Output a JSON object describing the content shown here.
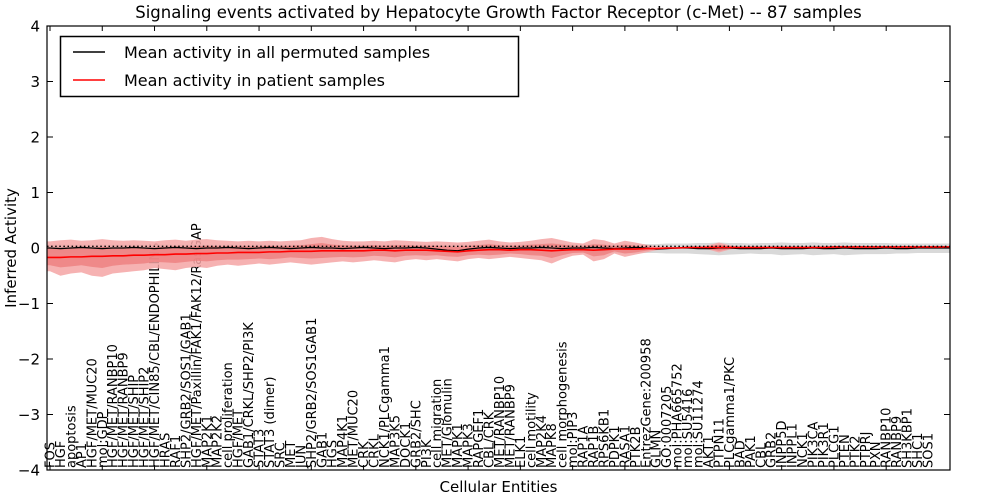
{
  "title": "Signaling events activated by Hepatocyte Growth Factor Receptor (c-Met) -- 87 samples",
  "legend": {
    "items": [
      {
        "label": "Mean activity in all permuted samples",
        "color": "#000000"
      },
      {
        "label": "Mean activity in patient samples",
        "color": "#ff0000"
      }
    ]
  },
  "axes": {
    "xlabel": "Cellular Entities",
    "ylabel": "Inferred Activity",
    "yticks": [
      4,
      3,
      2,
      1,
      0,
      -1,
      -2,
      -3,
      -4
    ],
    "ylim": [
      -4,
      4
    ]
  },
  "colors": {
    "patient_line": "#ff0000",
    "permuted_line": "#000000",
    "patient_band_outer": "#f4a4a4",
    "patient_band_inner": "#ee7e7e",
    "permuted_band": "#d9d9d9"
  },
  "chart_data": {
    "type": "line",
    "title": "Signaling events activated by Hepatocyte Growth Factor Receptor (c-Met) -- 87 samples",
    "xlabel": "Cellular Entities",
    "ylabel": "Inferred Activity",
    "ylim": [
      -4,
      4
    ],
    "grid": false,
    "legend_position": "upper left",
    "categories": [
      "FOS",
      "HGF",
      "apoptosis",
      "AP1",
      "HGF/MET/MUC20",
      "mol:GDP",
      "HGF/MET/RANBP10",
      "HGF/MET/RANBP9",
      "HGF/MET/SHIP",
      "HGF/MET/SHIP2",
      "HGF/MET/CIN85/CBL/ENDOPHILINS",
      "HRAS",
      "RAF1",
      "SHP2/GRB2/SOS1/GAB1",
      "HGF/MET/Paxillin/FAK1/FAK12/RasGAP",
      "MAP2K1",
      "MAP2K2",
      "cell proliferation",
      "HGF/MET",
      "GAB1/CRKL/SHP2/PI3K",
      "STAT3",
      "STAT3 (dimer)",
      "SRC",
      "MET",
      "JUN",
      "SHP2/GRB2/SOS1GAB1",
      "GAB1",
      "HGS",
      "MAP4K1",
      "MET/MUC20",
      "CRK",
      "CRKL",
      "NCK1/PLCgamma1",
      "MAP3K5",
      "DOCK1",
      "GRB2/SHC",
      "PI3K",
      "cell migration",
      "MET/Glomulin",
      "MAPK1",
      "MAPK3",
      "RAPGEF1",
      "CBL/CRK",
      "MET/RANBP10",
      "MET/RANBP9",
      "ELK1",
      "cell motility",
      "MAP2K4",
      "MAPK8",
      "cell morphogenesis",
      "mol:PIP3",
      "RAP1A",
      "RAP1B",
      "RPS6KB1",
      "PDPK1",
      "RASA1",
      "PTK2B",
      "EntrezGene:200958",
      "GLMN",
      "GO:0007205",
      "mol:PHA665752",
      "mol:SU5416",
      "mol:SU11274",
      "AKT1",
      "PTPN11",
      "PLCgamma1/PKC",
      "BAD",
      "PAK1",
      "CBL",
      "GRB2",
      "INPP5D",
      "INPPL1",
      "NCK1",
      "PIK3CA",
      "PIK3R1",
      "PLCG1",
      "PTEN",
      "PTK2",
      "PTPRJ",
      "PXN",
      "RANBP10",
      "RANBP9",
      "SH3KBP1",
      "SHC1",
      "SOS1"
    ],
    "series": [
      {
        "name": "Mean activity in all permuted samples",
        "color": "#000000",
        "style": "solid",
        "width": 1.3,
        "values": [
          0,
          -0.01,
          0,
          0.01,
          0,
          -0.01,
          0,
          0,
          0.01,
          0,
          -0.01,
          0,
          0.01,
          0,
          -0.01,
          0,
          0,
          0.01,
          0,
          -0.01,
          0,
          0.01,
          0,
          -0.01,
          0,
          0.01,
          0,
          0,
          -0.01,
          0,
          0.01,
          0,
          -0.01,
          0,
          0,
          0.01,
          0,
          -0.02,
          -0.04,
          -0.05,
          -0.02,
          0,
          0.01,
          0,
          -0.01,
          0,
          0,
          0.01,
          0,
          -0.01,
          0,
          0,
          0.01,
          0,
          -0.01,
          0,
          0.01,
          0,
          -0.02,
          -0.01,
          0,
          0,
          -0.01,
          -0.01,
          0,
          0,
          -0.01,
          -0.01,
          -0.01,
          0,
          -0.01,
          -0.01,
          -0.01,
          0,
          -0.01,
          -0.01,
          0,
          -0.01,
          -0.01,
          -0.01,
          0,
          -0.01,
          -0.01,
          0,
          0
        ]
      },
      {
        "name": "Mean activity in patient samples",
        "color": "#ff0000",
        "style": "solid",
        "width": 1.6,
        "values": [
          -0.17,
          -0.17,
          -0.16,
          -0.16,
          -0.15,
          -0.15,
          -0.14,
          -0.14,
          -0.13,
          -0.13,
          -0.12,
          -0.12,
          -0.11,
          -0.11,
          -0.1,
          -0.1,
          -0.09,
          -0.09,
          -0.08,
          -0.08,
          -0.08,
          -0.07,
          -0.07,
          -0.06,
          -0.06,
          -0.06,
          -0.05,
          -0.05,
          -0.05,
          -0.05,
          -0.05,
          -0.04,
          -0.04,
          -0.05,
          -0.04,
          -0.04,
          -0.04,
          -0.05,
          -0.06,
          -0.07,
          -0.05,
          -0.04,
          -0.03,
          -0.03,
          -0.04,
          -0.03,
          -0.03,
          -0.04,
          -0.05,
          -0.04,
          -0.03,
          -0.03,
          -0.04,
          -0.03,
          -0.02,
          -0.02,
          -0.02,
          -0.01,
          -0.01,
          0,
          0,
          0.01,
          0.01,
          0.01,
          0.01,
          0.01,
          0.01,
          0.01,
          0.01,
          0.01,
          0.01,
          0.01,
          0.01,
          0.01,
          0.01,
          0.02,
          0.02,
          0.02,
          0.02,
          0.02,
          0.02,
          0.02,
          0.02,
          0.02,
          0.02
        ]
      },
      {
        "name": "baseline",
        "color": "#000000",
        "style": "dotted",
        "width": 1.3,
        "constant": 0.03
      }
    ],
    "bands": [
      {
        "name": "permuted-range",
        "color": "#d9d9d9",
        "opacity": 1,
        "upper": [
          0.06,
          0.07,
          0.06,
          0.07,
          0.06,
          0.07,
          0.06,
          0.06,
          0.07,
          0.06,
          0.06,
          0.07,
          0.06,
          0.06,
          0.07,
          0.06,
          0.06,
          0.07,
          0.06,
          0.06,
          0.07,
          0.06,
          0.06,
          0.07,
          0.06,
          0.07,
          0.08,
          0.07,
          0.06,
          0.06,
          0.07,
          0.06,
          0.06,
          0.07,
          0.06,
          0.06,
          0.07,
          0.06,
          0.06,
          0.07,
          0.08,
          0.07,
          0.08,
          0.07,
          0.06,
          0.07,
          0.08,
          0.08,
          0.09,
          0.08,
          0.07,
          0.07,
          0.08,
          0.08,
          0.07,
          0.08,
          0.08,
          0.07,
          0.07,
          0.08,
          0.08,
          0.08,
          0.09,
          0.09,
          0.1,
          0.09,
          0.09,
          0.08,
          0.09,
          0.09,
          0.1,
          0.09,
          0.09,
          0.1,
          0.09,
          0.09,
          0.1,
          0.09,
          0.09,
          0.09,
          0.09,
          0.08,
          0.08,
          0.08,
          0.08
        ],
        "lower": [
          -0.08,
          -0.09,
          -0.08,
          -0.09,
          -0.08,
          -0.09,
          -0.08,
          -0.08,
          -0.09,
          -0.08,
          -0.08,
          -0.09,
          -0.08,
          -0.08,
          -0.09,
          -0.08,
          -0.08,
          -0.09,
          -0.08,
          -0.08,
          -0.09,
          -0.08,
          -0.08,
          -0.09,
          -0.08,
          -0.09,
          -0.1,
          -0.09,
          -0.08,
          -0.08,
          -0.09,
          -0.08,
          -0.08,
          -0.09,
          -0.08,
          -0.08,
          -0.09,
          -0.08,
          -0.08,
          -0.1,
          -0.1,
          -0.09,
          -0.1,
          -0.09,
          -0.08,
          -0.09,
          -0.1,
          -0.1,
          -0.11,
          -0.1,
          -0.09,
          -0.09,
          -0.1,
          -0.1,
          -0.09,
          -0.1,
          -0.1,
          -0.09,
          -0.09,
          -0.1,
          -0.1,
          -0.1,
          -0.11,
          -0.12,
          -0.13,
          -0.12,
          -0.11,
          -0.1,
          -0.11,
          -0.11,
          -0.13,
          -0.12,
          -0.11,
          -0.13,
          -0.12,
          -0.11,
          -0.13,
          -0.12,
          -0.11,
          -0.11,
          -0.11,
          -0.1,
          -0.1,
          -0.09,
          -0.09
        ]
      },
      {
        "name": "patient-range-outer",
        "color": "#f4a4a4",
        "opacity": 0.85,
        "upper": [
          0.12,
          0.14,
          0.15,
          0.13,
          0.14,
          0.16,
          0.14,
          0.13,
          0.14,
          0.13,
          0.12,
          0.14,
          0.15,
          0.13,
          0.15,
          0.16,
          0.14,
          0.13,
          0.12,
          0.13,
          0.12,
          0.13,
          0.12,
          0.13,
          0.14,
          0.18,
          0.2,
          0.16,
          0.13,
          0.12,
          0.12,
          0.13,
          0.12,
          0.14,
          0.13,
          0.12,
          0.11,
          0.12,
          0.11,
          0.1,
          0.11,
          0.13,
          0.15,
          0.12,
          0.1,
          0.11,
          0.13,
          0.16,
          0.18,
          0.14,
          0.1,
          0.08,
          0.16,
          0.14,
          0.08,
          0.13,
          0.1,
          0.06,
          0.03,
          0.02,
          0.01,
          0.01,
          0.01,
          0.05,
          0.1,
          0.05,
          0.02,
          0.01,
          0.01,
          0.01,
          0.02,
          0.02,
          0.02,
          0.02,
          0.02,
          0.02,
          0.02,
          0.02,
          0.02,
          0.02,
          0.02,
          0.02,
          0.02,
          0.02,
          0.02
        ],
        "lower": [
          -0.42,
          -0.5,
          -0.46,
          -0.44,
          -0.5,
          -0.52,
          -0.46,
          -0.44,
          -0.42,
          -0.4,
          -0.36,
          -0.38,
          -0.4,
          -0.36,
          -0.34,
          -0.36,
          -0.32,
          -0.3,
          -0.32,
          -0.3,
          -0.28,
          -0.3,
          -0.28,
          -0.26,
          -0.28,
          -0.3,
          -0.28,
          -0.26,
          -0.24,
          -0.26,
          -0.24,
          -0.22,
          -0.24,
          -0.26,
          -0.22,
          -0.2,
          -0.22,
          -0.2,
          -0.22,
          -0.24,
          -0.2,
          -0.18,
          -0.2,
          -0.18,
          -0.16,
          -0.18,
          -0.2,
          -0.22,
          -0.28,
          -0.2,
          -0.14,
          -0.12,
          -0.24,
          -0.2,
          -0.1,
          -0.16,
          -0.12,
          -0.08,
          -0.04,
          -0.02,
          -0.01,
          0,
          0,
          -0.03,
          -0.08,
          -0.03,
          0,
          0.01,
          0.01,
          0.01,
          0,
          0,
          0,
          0,
          0,
          0,
          0,
          0,
          0,
          0,
          0,
          0,
          0,
          0,
          0
        ]
      },
      {
        "name": "patient-range-inner",
        "color": "#ee7e7e",
        "opacity": 0.8,
        "upper": [
          0,
          0,
          0.01,
          0,
          0.01,
          0.02,
          0.01,
          0.01,
          0.02,
          0.01,
          0.01,
          0.02,
          0.03,
          0.02,
          0.03,
          0.04,
          0.03,
          0.03,
          0.03,
          0.03,
          0.03,
          0.04,
          0.03,
          0.04,
          0.05,
          0.07,
          0.09,
          0.06,
          0.05,
          0.04,
          0.04,
          0.05,
          0.04,
          0.05,
          0.05,
          0.04,
          0.04,
          0.04,
          0.03,
          0.02,
          0.04,
          0.05,
          0.07,
          0.05,
          0.04,
          0.04,
          0.06,
          0.07,
          0.08,
          0.06,
          0.04,
          0.03,
          0.07,
          0.06,
          0.03,
          0.06,
          0.04,
          0.02,
          0.01,
          0.01,
          0.01,
          0.01,
          0.01,
          0.03,
          0.06,
          0.03,
          0.01,
          0.01,
          0.01,
          0.01,
          0.02,
          0.02,
          0.02,
          0.02,
          0.02,
          0.02,
          0.02,
          0.02,
          0.02,
          0.02,
          0.02,
          0.02,
          0.02,
          0.02,
          0.02
        ],
        "lower": [
          -0.31,
          -0.35,
          -0.33,
          -0.31,
          -0.34,
          -0.36,
          -0.32,
          -0.3,
          -0.29,
          -0.28,
          -0.25,
          -0.26,
          -0.27,
          -0.25,
          -0.23,
          -0.24,
          -0.22,
          -0.21,
          -0.21,
          -0.2,
          -0.19,
          -0.2,
          -0.19,
          -0.17,
          -0.18,
          -0.19,
          -0.18,
          -0.17,
          -0.16,
          -0.17,
          -0.16,
          -0.14,
          -0.15,
          -0.17,
          -0.14,
          -0.13,
          -0.14,
          -0.13,
          -0.15,
          -0.16,
          -0.13,
          -0.12,
          -0.13,
          -0.12,
          -0.1,
          -0.11,
          -0.13,
          -0.14,
          -0.18,
          -0.13,
          -0.09,
          -0.08,
          -0.15,
          -0.13,
          -0.06,
          -0.1,
          -0.08,
          -0.05,
          -0.02,
          -0.01,
          0,
          0,
          0,
          -0.02,
          -0.05,
          -0.02,
          0,
          0.01,
          0.01,
          0.01,
          0,
          0,
          0,
          0,
          0,
          0,
          0,
          0,
          0,
          0,
          0,
          0,
          0,
          0,
          0
        ]
      }
    ]
  }
}
